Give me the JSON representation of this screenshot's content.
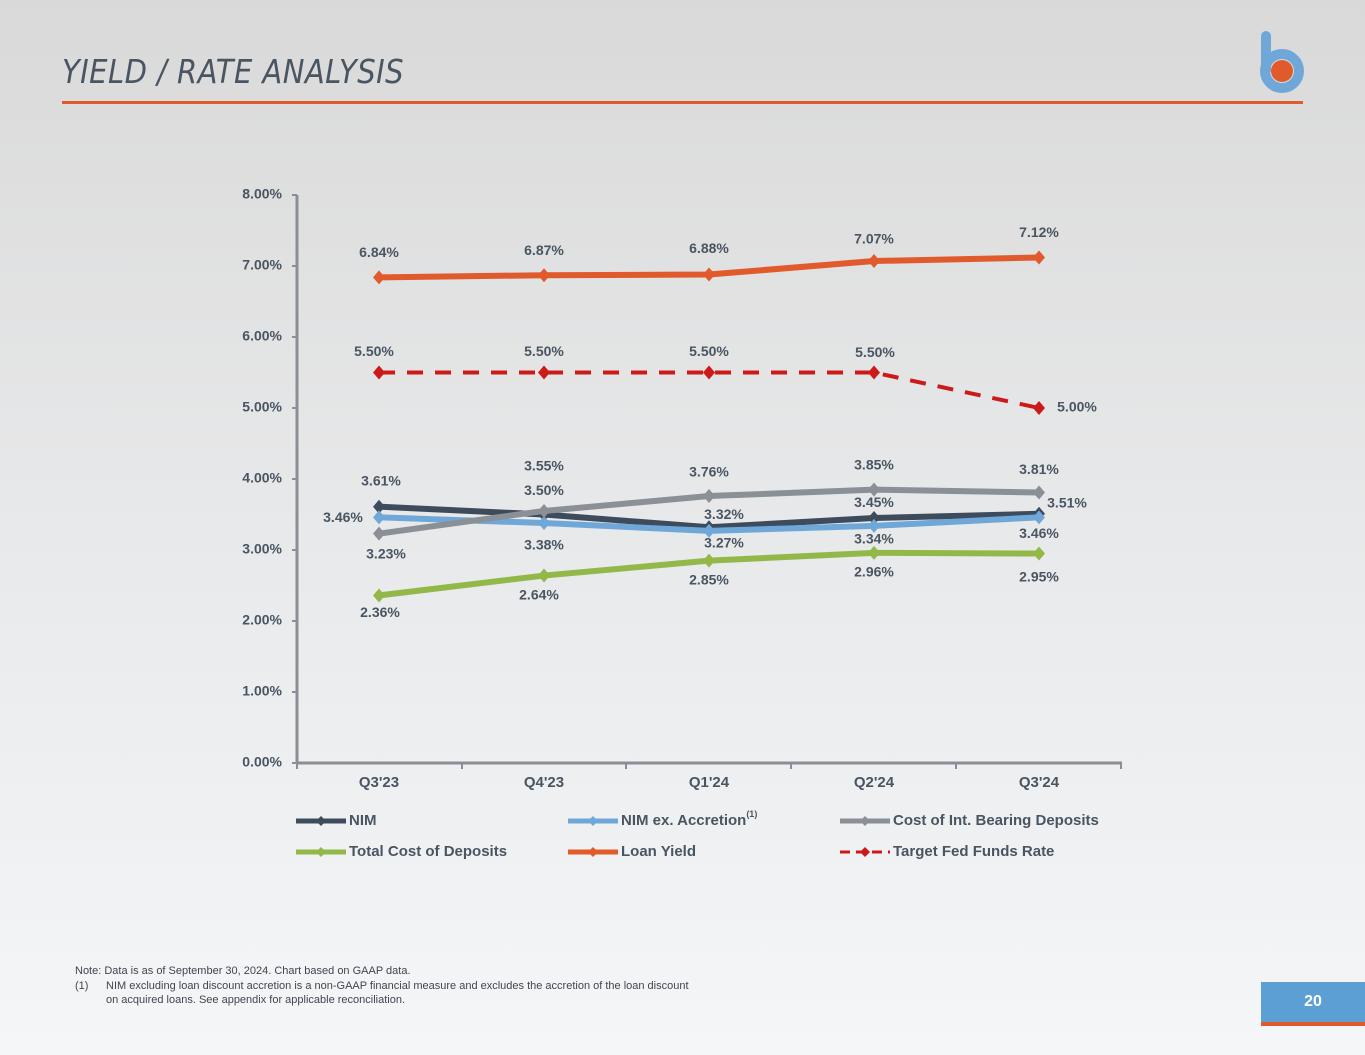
{
  "header": {
    "title": "YIELD / RATE ANALYSIS"
  },
  "chart_data": {
    "type": "line",
    "categories": [
      "Q3'23",
      "Q4'23",
      "Q1'24",
      "Q2'24",
      "Q3'24"
    ],
    "ylim": [
      0,
      8
    ],
    "yticks": [
      "0.00%",
      "1.00%",
      "2.00%",
      "3.00%",
      "4.00%",
      "5.00%",
      "6.00%",
      "7.00%",
      "8.00%"
    ],
    "grid": false,
    "legend_position": "bottom",
    "series": [
      {
        "name": "NIM",
        "values": [
          3.61,
          3.5,
          3.32,
          3.45,
          3.51
        ],
        "labels": [
          "3.61%",
          "3.50%",
          "3.32%",
          "3.45%",
          "3.51%"
        ],
        "color": "#3d4b5c",
        "dashed": false
      },
      {
        "name": "NIM ex. Accretion",
        "superscript": "(1)",
        "values": [
          3.46,
          3.38,
          3.27,
          3.34,
          3.46
        ],
        "labels": [
          "3.46%",
          "3.38%",
          "3.27%",
          "3.34%",
          "3.46%"
        ],
        "color": "#6fa8d8",
        "dashed": false
      },
      {
        "name": "Cost of Int. Bearing Deposits",
        "values": [
          3.23,
          3.55,
          3.76,
          3.85,
          3.81
        ],
        "labels": [
          "3.23%",
          "3.55%",
          "3.76%",
          "3.85%",
          "3.81%"
        ],
        "color": "#8a9096",
        "dashed": false
      },
      {
        "name": "Total Cost of Deposits",
        "values": [
          2.36,
          2.64,
          2.85,
          2.96,
          2.95
        ],
        "labels": [
          "2.36%",
          "2.64%",
          "2.85%",
          "2.96%",
          "2.95%"
        ],
        "color": "#93b84a",
        "dashed": false
      },
      {
        "name": "Loan Yield",
        "values": [
          6.84,
          6.87,
          6.88,
          7.07,
          7.12
        ],
        "labels": [
          "6.84%",
          "6.87%",
          "6.88%",
          "7.07%",
          "7.12%"
        ],
        "color": "#e05a2b",
        "dashed": false
      },
      {
        "name": "Target Fed Funds Rate",
        "values": [
          5.5,
          5.5,
          5.5,
          5.5,
          5.0
        ],
        "labels": [
          "5.50%",
          "5.50%",
          "5.50%",
          "5.50%",
          "5.00%"
        ],
        "color": "#cc1a1a",
        "dashed": true
      }
    ]
  },
  "notes": {
    "note": "Note: Data is as of September 30, 2024. Chart based on GAAP data.",
    "footnote_marker": "(1)",
    "footnote_line1": "NIM excluding loan discount accretion is a non-GAAP financial measure and excludes the accretion of the loan discount",
    "footnote_line2": "on acquired loans. See appendix for applicable reconciliation."
  },
  "page_number": "20"
}
